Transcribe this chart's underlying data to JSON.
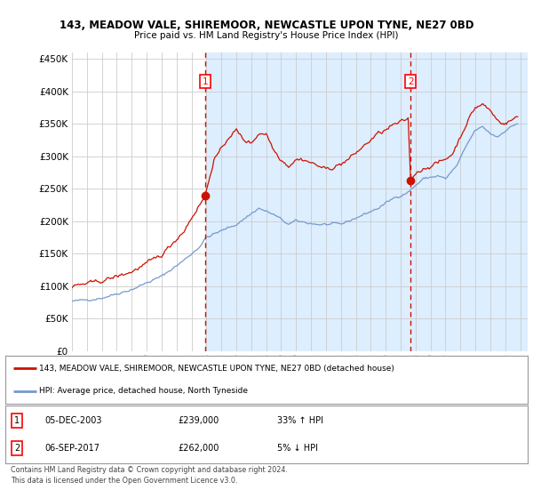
{
  "title1": "143, MEADOW VALE, SHIREMOOR, NEWCASTLE UPON TYNE, NE27 0BD",
  "title2": "Price paid vs. HM Land Registry's House Price Index (HPI)",
  "ylabel_vals": [
    0,
    50000,
    100000,
    150000,
    200000,
    250000,
    300000,
    350000,
    400000,
    450000
  ],
  "ylim": [
    0,
    460000
  ],
  "xlim_start": 1995.0,
  "xlim_end": 2025.5,
  "fig_bg": "#ffffff",
  "plot_bg_left": "#ffffff",
  "plot_bg_right": "#ddeeff",
  "grid_color": "#cccccc",
  "hpi_color": "#7799cc",
  "price_color": "#cc1100",
  "shade_x1": 2003.92,
  "shade_x2": 2017.67,
  "marker1_x": 2003.92,
  "marker1_y": 239000,
  "marker2_x": 2017.67,
  "marker2_y": 262000,
  "legend_line1": "143, MEADOW VALE, SHIREMOOR, NEWCASTLE UPON TYNE, NE27 0BD (detached house)",
  "legend_line2": "HPI: Average price, detached house, North Tyneside",
  "table_rows": [
    {
      "num": "1",
      "date": "05-DEC-2003",
      "price": "£239,000",
      "change": "33% ↑ HPI"
    },
    {
      "num": "2",
      "date": "06-SEP-2017",
      "price": "£262,000",
      "change": "5% ↓ HPI"
    }
  ],
  "footnote1": "Contains HM Land Registry data © Crown copyright and database right 2024.",
  "footnote2": "This data is licensed under the Open Government Licence v3.0."
}
